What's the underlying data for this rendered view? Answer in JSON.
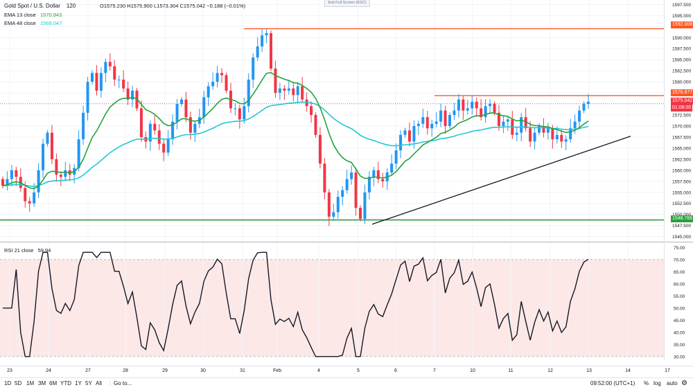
{
  "header": {
    "symbol": "Gold Spot / U.S. Dollar",
    "interval": "120",
    "ohlc": "O1575.230 H1575.900 L1573.304 C1575.042 −0.188 (−0.01%)",
    "exit_fullscreen": "Exit Full Screen (ESC)"
  },
  "indicators": {
    "ema13_label": "EMA 13 close",
    "ema13_value": "1570.943",
    "ema48_label": "EMA 48 close",
    "ema48_value": "1569.047",
    "rsi_label": "RSI 21 close",
    "rsi_value": "59.94"
  },
  "colors": {
    "up": "#2196f3",
    "down": "#f23645",
    "ema13": "#22a33b",
    "ema48": "#1ec8d4",
    "resistance": "#ff5722",
    "support": "#2e9e3e",
    "trendline": "#131722",
    "rsi_band": "#fde8e8",
    "rsi_line": "#131722"
  },
  "price_flags": {
    "top_resistance": "1592.008",
    "mid_resistance": "1576.877",
    "last_price": "1575.042",
    "countdown": "01:08:00",
    "support": "1548.766"
  },
  "bottom_bar": {
    "timeframes": [
      "1D",
      "5D",
      "1M",
      "3M",
      "6M",
      "YTD",
      "1Y",
      "5Y",
      "All"
    ],
    "goto": "Go to...",
    "time": "09:52:00 (UTC+1)",
    "percent": "%",
    "log": "log",
    "auto": "auto"
  },
  "chart_data": [
    {
      "type": "candlestick",
      "title": "Gold Spot / U.S. Dollar 120",
      "y_ticks": [
        "1545.000",
        "1547.500",
        "1550.000",
        "1552.500",
        "1555.000",
        "1557.500",
        "1560.000",
        "1562.500",
        "1565.000",
        "1567.500",
        "1570.000",
        "1572.500",
        "1575.000",
        "1577.500",
        "1580.000",
        "1582.500",
        "1585.000",
        "1587.500",
        "1590.000",
        "1592.500",
        "1595.000",
        "1597.500"
      ],
      "ylim": [
        1544.0,
        1598.5
      ],
      "x_ticks": [
        "23",
        "24",
        "27",
        "28",
        "29",
        "30",
        "31",
        "Feb",
        "4",
        "5",
        "6",
        "7",
        "10",
        "11",
        "12",
        "13",
        "14",
        "17"
      ],
      "levels": {
        "resistance_top": 1592.008,
        "resistance_mid": 1576.877,
        "last": 1575.042,
        "support": 1548.766
      },
      "trendline": [
        {
          "x": 537,
          "y": 1547.8
        },
        {
          "x": 910,
          "y": 1567.7
        }
      ],
      "closes": [
        1556.5,
        1558.0,
        1560.0,
        1558.5,
        1556.0,
        1553.0,
        1552.5,
        1555.0,
        1560.0,
        1566.0,
        1568.5,
        1562.5,
        1559.0,
        1558.5,
        1560.0,
        1559.0,
        1560.5,
        1567.0,
        1573.0,
        1580.0,
        1582.0,
        1578.0,
        1582.0,
        1584.5,
        1583.5,
        1580.5,
        1580.5,
        1578.5,
        1576.0,
        1578.0,
        1574.0,
        1567.5,
        1566.5,
        1570.5,
        1569.0,
        1566.0,
        1564.0,
        1567.0,
        1571.0,
        1575.0,
        1576.0,
        1572.0,
        1568.5,
        1570.5,
        1572.0,
        1576.5,
        1579.0,
        1580.0,
        1582.0,
        1581.5,
        1578.0,
        1574.0,
        1574.0,
        1571.5,
        1574.5,
        1580.5,
        1585.5,
        1588.0,
        1590.5,
        1591.0,
        1583.0,
        1577.5,
        1578.5,
        1578.0,
        1578.5,
        1577.0,
        1579.0,
        1576.0,
        1574.5,
        1572.5,
        1568.0,
        1561.5,
        1555.0,
        1549.5,
        1550.5,
        1554.0,
        1555.5,
        1558.0,
        1559.5,
        1551.5,
        1549.0,
        1555.0,
        1558.5,
        1560.0,
        1558.0,
        1557.5,
        1559.5,
        1561.5,
        1564.5,
        1568.0,
        1569.0,
        1566.5,
        1570.0,
        1570.5,
        1572.0,
        1569.5,
        1570.5,
        1571.0,
        1573.5,
        1570.0,
        1572.5,
        1573.5,
        1576.0,
        1573.5,
        1574.0,
        1575.5,
        1574.0,
        1572.0,
        1574.5,
        1575.0,
        1573.0,
        1570.0,
        1571.0,
        1571.5,
        1568.0,
        1568.5,
        1572.0,
        1569.5,
        1566.5,
        1568.5,
        1570.0,
        1568.5,
        1569.5,
        1567.0,
        1568.0,
        1566.5,
        1567.0,
        1569.5,
        1571.0,
        1573.5,
        1575.0,
        1575.5
      ],
      "ema13_last": 1570.943,
      "ema48_last": 1569.047
    },
    {
      "type": "line",
      "title": "RSI 21 close",
      "y_ticks": [
        "30.00",
        "35.00",
        "40.00",
        "45.00",
        "50.00",
        "55.00",
        "60.00",
        "65.00",
        "70.00",
        "75.00"
      ],
      "ylim": [
        28.5,
        76.5
      ],
      "band": [
        30,
        70
      ],
      "last_value": 59.94
    }
  ]
}
